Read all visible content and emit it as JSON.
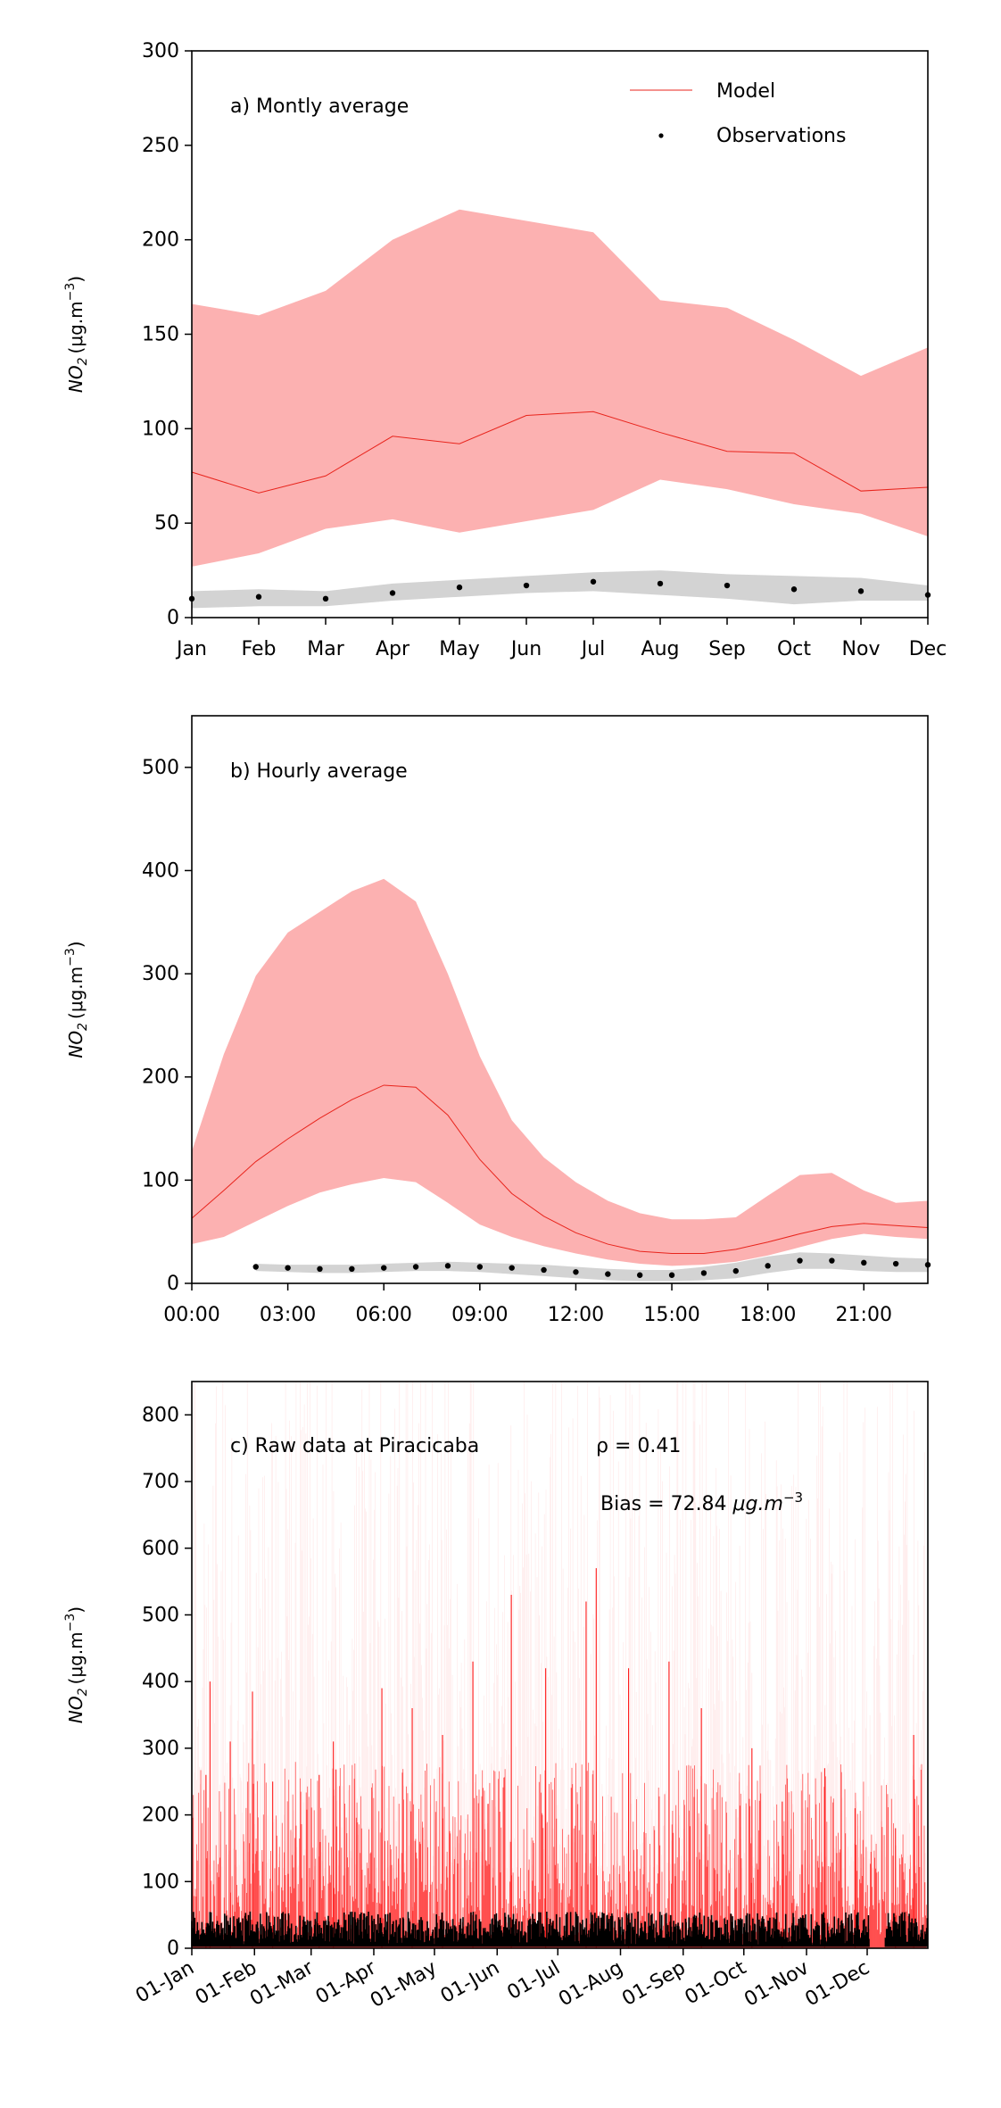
{
  "chart_data": [
    {
      "type": "line",
      "panel": "a",
      "annotation": "a) Montly average",
      "ylabel_base": "NO",
      "ylabel_sub": "2",
      "ylabel_units": "(μg.m",
      "ylabel_exp": "−3",
      "ylabel_close": ")",
      "ylim": [
        0,
        300
      ],
      "yticks": [
        0,
        50,
        100,
        150,
        200,
        250,
        300
      ],
      "categories": [
        "Jan",
        "Feb",
        "Mar",
        "Apr",
        "May",
        "Jun",
        "Jul",
        "Aug",
        "Sep",
        "Oct",
        "Nov",
        "Dec"
      ],
      "legend": {
        "placement": "top-right",
        "model_label": "Model",
        "obs_label": "Observations"
      },
      "series": [
        {
          "name": "Model",
          "color": "#e8241c",
          "values": [
            77,
            66,
            75,
            96,
            92,
            107,
            109,
            98,
            88,
            87,
            67,
            69
          ]
        },
        {
          "name": "Model range",
          "color": "#fcb1b1",
          "lower": [
            27,
            34,
            47,
            52,
            45,
            51,
            57,
            73,
            68,
            60,
            55,
            43
          ],
          "upper": [
            166,
            160,
            173,
            200,
            216,
            210,
            204,
            168,
            164,
            147,
            128,
            143
          ]
        },
        {
          "name": "Observations",
          "color": "#000000",
          "values": [
            10,
            11,
            10,
            13,
            16,
            17,
            19,
            18,
            17,
            15,
            14,
            12
          ]
        },
        {
          "name": "Observation range",
          "color": "#d3d3d3",
          "lower": [
            5,
            6,
            6,
            9,
            11,
            13,
            14,
            12,
            10,
            7,
            9,
            9
          ],
          "upper": [
            14,
            15,
            14,
            18,
            20,
            22,
            24,
            25,
            23,
            22,
            21,
            17
          ]
        }
      ]
    },
    {
      "type": "line",
      "panel": "b",
      "annotation": "b) Hourly average",
      "ylabel_base": "NO",
      "ylabel_sub": "2",
      "ylabel_units": "(μg.m",
      "ylabel_exp": "−3",
      "ylabel_close": ")",
      "ylim": [
        0,
        550
      ],
      "yticks": [
        0,
        100,
        200,
        300,
        400,
        500
      ],
      "xlim": [
        0,
        23
      ],
      "xticks": [
        {
          "x": 0,
          "label": "00:00"
        },
        {
          "x": 3,
          "label": "03:00"
        },
        {
          "x": 6,
          "label": "06:00"
        },
        {
          "x": 9,
          "label": "09:00"
        },
        {
          "x": 12,
          "label": "12:00"
        },
        {
          "x": 15,
          "label": "15:00"
        },
        {
          "x": 18,
          "label": "18:00"
        },
        {
          "x": 21,
          "label": "21:00"
        }
      ],
      "x": [
        0,
        1,
        2,
        3,
        4,
        5,
        6,
        7,
        8,
        9,
        10,
        11,
        12,
        13,
        14,
        15,
        16,
        17,
        18,
        19,
        20,
        21,
        22,
        23
      ],
      "series": [
        {
          "name": "Model",
          "color": "#e8241c",
          "values": [
            63,
            90,
            118,
            140,
            160,
            178,
            192,
            190,
            163,
            120,
            87,
            65,
            49,
            38,
            31,
            29,
            29,
            33,
            40,
            48,
            55,
            58,
            56,
            54
          ]
        },
        {
          "name": "Model range",
          "color": "#fcb1b1",
          "lower": [
            38,
            45,
            60,
            75,
            88,
            96,
            102,
            98,
            78,
            57,
            45,
            36,
            29,
            23,
            19,
            17,
            18,
            21,
            27,
            35,
            43,
            48,
            45,
            43
          ],
          "upper": [
            128,
            222,
            298,
            340,
            360,
            380,
            392,
            370,
            300,
            220,
            158,
            122,
            98,
            80,
            68,
            62,
            62,
            64,
            85,
            105,
            107,
            90,
            78,
            80
          ]
        },
        {
          "name": "Observations",
          "color": "#000000",
          "x": [
            2,
            3,
            4,
            5,
            6,
            7,
            8,
            9,
            10,
            11,
            12,
            13,
            14,
            15,
            16,
            17,
            18,
            19,
            20,
            21,
            22,
            23
          ],
          "values": [
            16,
            15,
            14,
            14,
            15,
            16,
            17,
            16,
            15,
            13,
            11,
            9,
            8,
            8,
            10,
            12,
            17,
            22,
            22,
            20,
            19,
            18
          ]
        },
        {
          "name": "Observation range",
          "color": "#d3d3d3",
          "x": [
            2,
            3,
            4,
            5,
            6,
            7,
            8,
            9,
            10,
            11,
            12,
            13,
            14,
            15,
            16,
            17,
            18,
            19,
            20,
            21,
            22,
            23
          ],
          "lower": [
            12,
            11,
            10,
            10,
            11,
            12,
            12,
            11,
            9,
            7,
            5,
            3,
            2,
            2,
            3,
            5,
            10,
            14,
            14,
            12,
            11,
            11
          ],
          "upper": [
            19,
            18,
            18,
            18,
            19,
            20,
            21,
            20,
            19,
            18,
            16,
            14,
            13,
            13,
            16,
            20,
            26,
            30,
            29,
            27,
            25,
            24
          ]
        }
      ]
    },
    {
      "type": "line",
      "panel": "c",
      "annotation": "c) Raw data at Piracicaba",
      "stat_r": "ρ = 0.41",
      "stat_bias_prefix": "Bias = 72.84 ",
      "stat_bias_units": "μg.m",
      "stat_bias_exp": "−3",
      "ylabel_base": "NO",
      "ylabel_sub": "2",
      "ylabel_units": "(μg.m",
      "ylabel_exp": "−3",
      "ylabel_close": ")",
      "ylim": [
        0,
        850
      ],
      "yticks": [
        0,
        100,
        200,
        300,
        400,
        500,
        600,
        700,
        800
      ],
      "xlim": [
        "2019-01-01",
        "2019-12-31"
      ],
      "xticks": [
        {
          "x": "2019-01-01",
          "label": "01-Jan"
        },
        {
          "x": "2019-02-01",
          "label": "01-Feb"
        },
        {
          "x": "2019-03-01",
          "label": "01-Mar"
        },
        {
          "x": "2019-04-01",
          "label": "01-Apr"
        },
        {
          "x": "2019-05-01",
          "label": "01-May"
        },
        {
          "x": "2019-06-01",
          "label": "01-Jun"
        },
        {
          "x": "2019-07-01",
          "label": "01-Jul"
        },
        {
          "x": "2019-08-01",
          "label": "01-Aug"
        },
        {
          "x": "2019-09-01",
          "label": "01-Sep"
        },
        {
          "x": "2019-10-01",
          "label": "01-Oct"
        },
        {
          "x": "2019-11-01",
          "label": "01-Nov"
        },
        {
          "x": "2019-12-01",
          "label": "01-Dec"
        }
      ],
      "series": [
        {
          "name": "Model (hourly)",
          "color": "#ff1a1a",
          "peaks": [
            {
              "x": "2019-01-01",
              "y": 150
            },
            {
              "x": "2019-01-08",
              "y": 260
            },
            {
              "x": "2019-01-10",
              "y": 400
            },
            {
              "x": "2019-01-20",
              "y": 310
            },
            {
              "x": "2019-01-31",
              "y": 385
            },
            {
              "x": "2019-02-10",
              "y": 250
            },
            {
              "x": "2019-03-05",
              "y": 260
            },
            {
              "x": "2019-03-12",
              "y": 310
            },
            {
              "x": "2019-04-05",
              "y": 390
            },
            {
              "x": "2019-04-20",
              "y": 360
            },
            {
              "x": "2019-05-05",
              "y": 320
            },
            {
              "x": "2019-05-20",
              "y": 430
            },
            {
              "x": "2019-06-08",
              "y": 530
            },
            {
              "x": "2019-06-25",
              "y": 420
            },
            {
              "x": "2019-07-15",
              "y": 520
            },
            {
              "x": "2019-07-20",
              "y": 570
            },
            {
              "x": "2019-08-05",
              "y": 420
            },
            {
              "x": "2019-08-25",
              "y": 430
            },
            {
              "x": "2019-09-10",
              "y": 360
            },
            {
              "x": "2019-10-05",
              "y": 300
            },
            {
              "x": "2019-10-20",
              "y": 220
            },
            {
              "x": "2019-11-10",
              "y": 270
            },
            {
              "x": "2019-11-25",
              "y": 210
            },
            {
              "x": "2019-12-15",
              "y": 180
            },
            {
              "x": "2019-12-24",
              "y": 320
            }
          ]
        },
        {
          "name": "Observations (hourly)",
          "color": "#000000",
          "typical_range": [
            5,
            55
          ],
          "gap": [
            "2019-12-02",
            "2019-12-10"
          ]
        }
      ]
    }
  ]
}
